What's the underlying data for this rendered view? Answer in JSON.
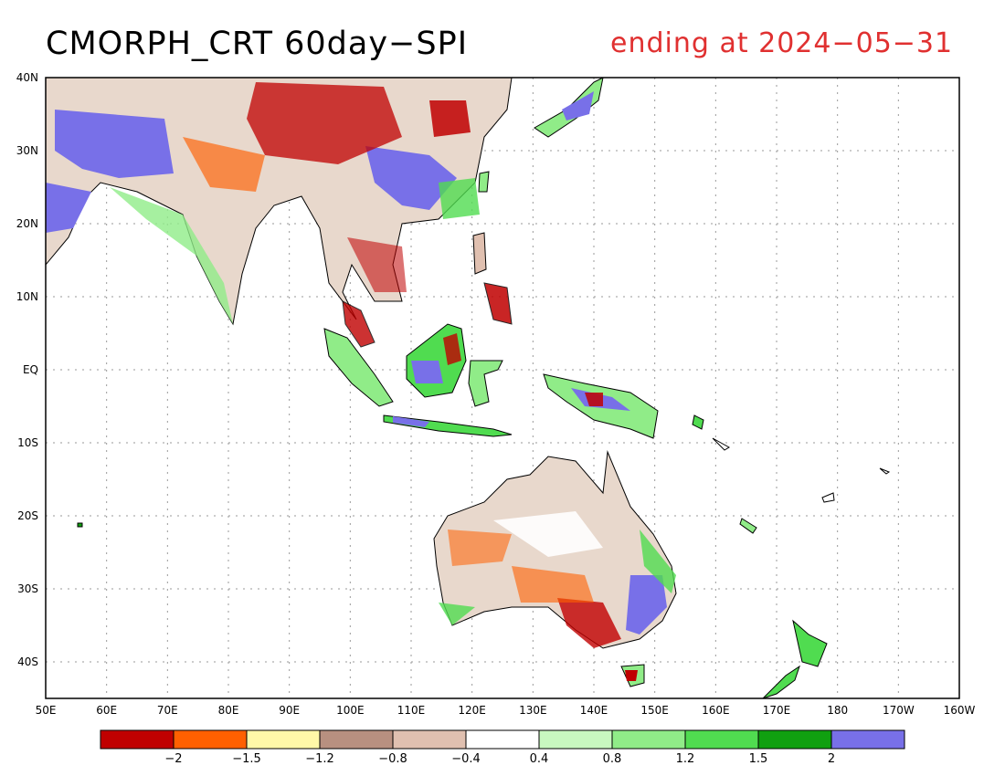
{
  "title": "CMORPH_CRT 60day−SPI",
  "subtitle": "ending at 2024−05−31",
  "map": {
    "lat_labels": [
      "40N",
      "30N",
      "20N",
      "10N",
      "EQ",
      "10S",
      "20S",
      "30S",
      "40S"
    ],
    "lon_labels": [
      "50E",
      "60E",
      "70E",
      "80E",
      "90E",
      "100E",
      "110E",
      "120E",
      "130E",
      "140E",
      "150E",
      "160E",
      "170E",
      "180",
      "170W",
      "160W"
    ]
  },
  "colorbar": {
    "colors": [
      "#c00000",
      "#ff6000",
      "#fff8a8",
      "#b89080",
      "#e0c0b0",
      "#ffffff",
      "#c8f8c0",
      "#90ec88",
      "#50dc50",
      "#10a010",
      "#7870e8"
    ],
    "labels": [
      "−2",
      "−1.5",
      "−1.2",
      "−0.8",
      "−0.4",
      "0.4",
      "0.8",
      "1.2",
      "1.5",
      "2"
    ]
  }
}
